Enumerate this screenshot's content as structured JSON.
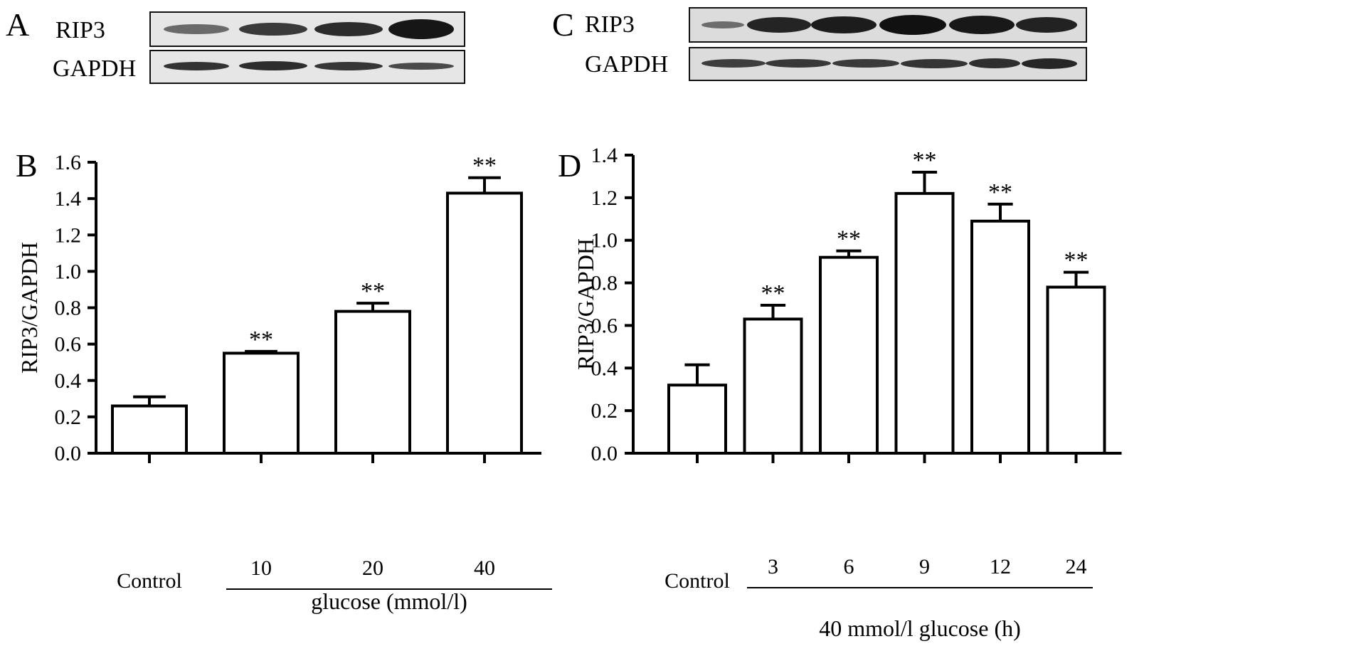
{
  "panels": {
    "A": {
      "letter": "A",
      "labels": [
        "RIP3",
        "GAPDH"
      ]
    },
    "C": {
      "letter": "C",
      "labels": [
        "RIP3",
        "GAPDH"
      ]
    }
  },
  "chart_data": [
    {
      "type": "bar",
      "panel_letter": "B",
      "ylabel": "RIP3/GAPDH",
      "ylim": [
        0,
        1.6
      ],
      "yticks": [
        "0.0",
        "0.2",
        "0.4",
        "0.6",
        "0.8",
        "1.0",
        "1.2",
        "1.4",
        "1.6"
      ],
      "categories": [
        "Control",
        "10",
        "20",
        "40"
      ],
      "values": [
        0.26,
        0.55,
        0.78,
        1.43
      ],
      "errors": [
        0.05,
        0.01,
        0.045,
        0.085
      ],
      "annotations": [
        "",
        "**",
        "**",
        "**"
      ],
      "group_label": "glucose (mmol/l)",
      "grid": false
    },
    {
      "type": "bar",
      "panel_letter": "D",
      "ylabel": "RIP3/GAPDH",
      "ylim": [
        0,
        1.4
      ],
      "yticks": [
        "0.0",
        "0.2",
        "0.4",
        "0.6",
        "0.8",
        "1.0",
        "1.2",
        "1.4"
      ],
      "categories": [
        "Control",
        "3",
        "6",
        "9",
        "12",
        "24"
      ],
      "values": [
        0.32,
        0.63,
        0.92,
        1.22,
        1.09,
        0.78
      ],
      "errors": [
        0.095,
        0.065,
        0.03,
        0.1,
        0.08,
        0.07
      ],
      "annotations": [
        "",
        "**",
        "**",
        "**",
        "**",
        "**"
      ],
      "group_label": "40 mmol/l glucose (h)",
      "grid": false
    }
  ]
}
